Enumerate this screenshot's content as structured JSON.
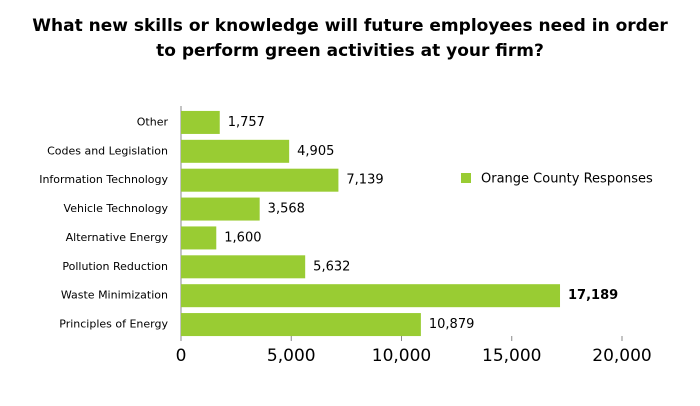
{
  "chart_data": {
    "type": "hbar",
    "title": "What new skills or knowledge will future employees need in order to perform green activities at your firm?",
    "categories": [
      "Other",
      "Codes and Legislation",
      "Information Technology",
      "Vehicle Technology",
      "Alternative Energy",
      "Pollution Reduction",
      "Waste Minimization",
      "Principles of Energy"
    ],
    "series": [
      {
        "name": "Orange County Responses",
        "color": "#99cc33",
        "values": [
          1757,
          4905,
          7139,
          3568,
          1600,
          5632,
          17189,
          10879
        ],
        "value_labels": [
          "1,757",
          "4,905",
          "7,139",
          "3,568",
          "1,600",
          "5,632",
          "17,189",
          "10,879"
        ]
      }
    ],
    "xlim": [
      0,
      20000
    ],
    "xticks": [
      0,
      {
        "value": 5000,
        "label": "5,000"
      },
      {
        "value": 10000,
        "label": "10,000"
      },
      {
        "value": 15000,
        "label": "15,000"
      },
      {
        "value": 20000,
        "label": "20,000"
      }
    ],
    "legend": "right"
  }
}
